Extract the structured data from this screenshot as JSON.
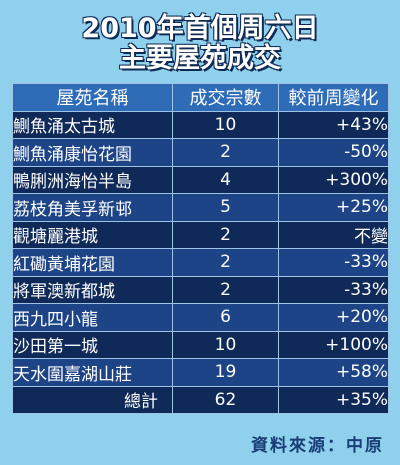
{
  "chart_data": {
    "type": "table",
    "title_line1": "2010年首個周六日",
    "title_line2": "主要屋苑成交",
    "columns": [
      "屋苑名稱",
      "成交宗數",
      "較前周變化"
    ],
    "rows": [
      {
        "name": "鰂魚涌太古城",
        "count": "10",
        "change": "+43%"
      },
      {
        "name": "鰂魚涌康怡花園",
        "count": "2",
        "change": "-50%"
      },
      {
        "name": "鴨脷洲海怡半島",
        "count": "4",
        "change": "+300%"
      },
      {
        "name": "荔枝角美孚新邨",
        "count": "5",
        "change": "+25%"
      },
      {
        "name": "觀塘麗港城",
        "count": "2",
        "change": "不變"
      },
      {
        "name": "紅磡黃埔花園",
        "count": "2",
        "change": "-33%"
      },
      {
        "name": "將軍澳新都城",
        "count": "2",
        "change": "-33%"
      },
      {
        "name": "西九四小龍",
        "count": "6",
        "change": "+20%"
      },
      {
        "name": "沙田第一城",
        "count": "10",
        "change": "+100%"
      },
      {
        "name": "天水圍嘉湖山莊",
        "count": "19",
        "change": "+58%"
      }
    ],
    "total": {
      "label": "總計",
      "count": "62",
      "change": "+35%"
    },
    "source": "資料來源：中原"
  }
}
